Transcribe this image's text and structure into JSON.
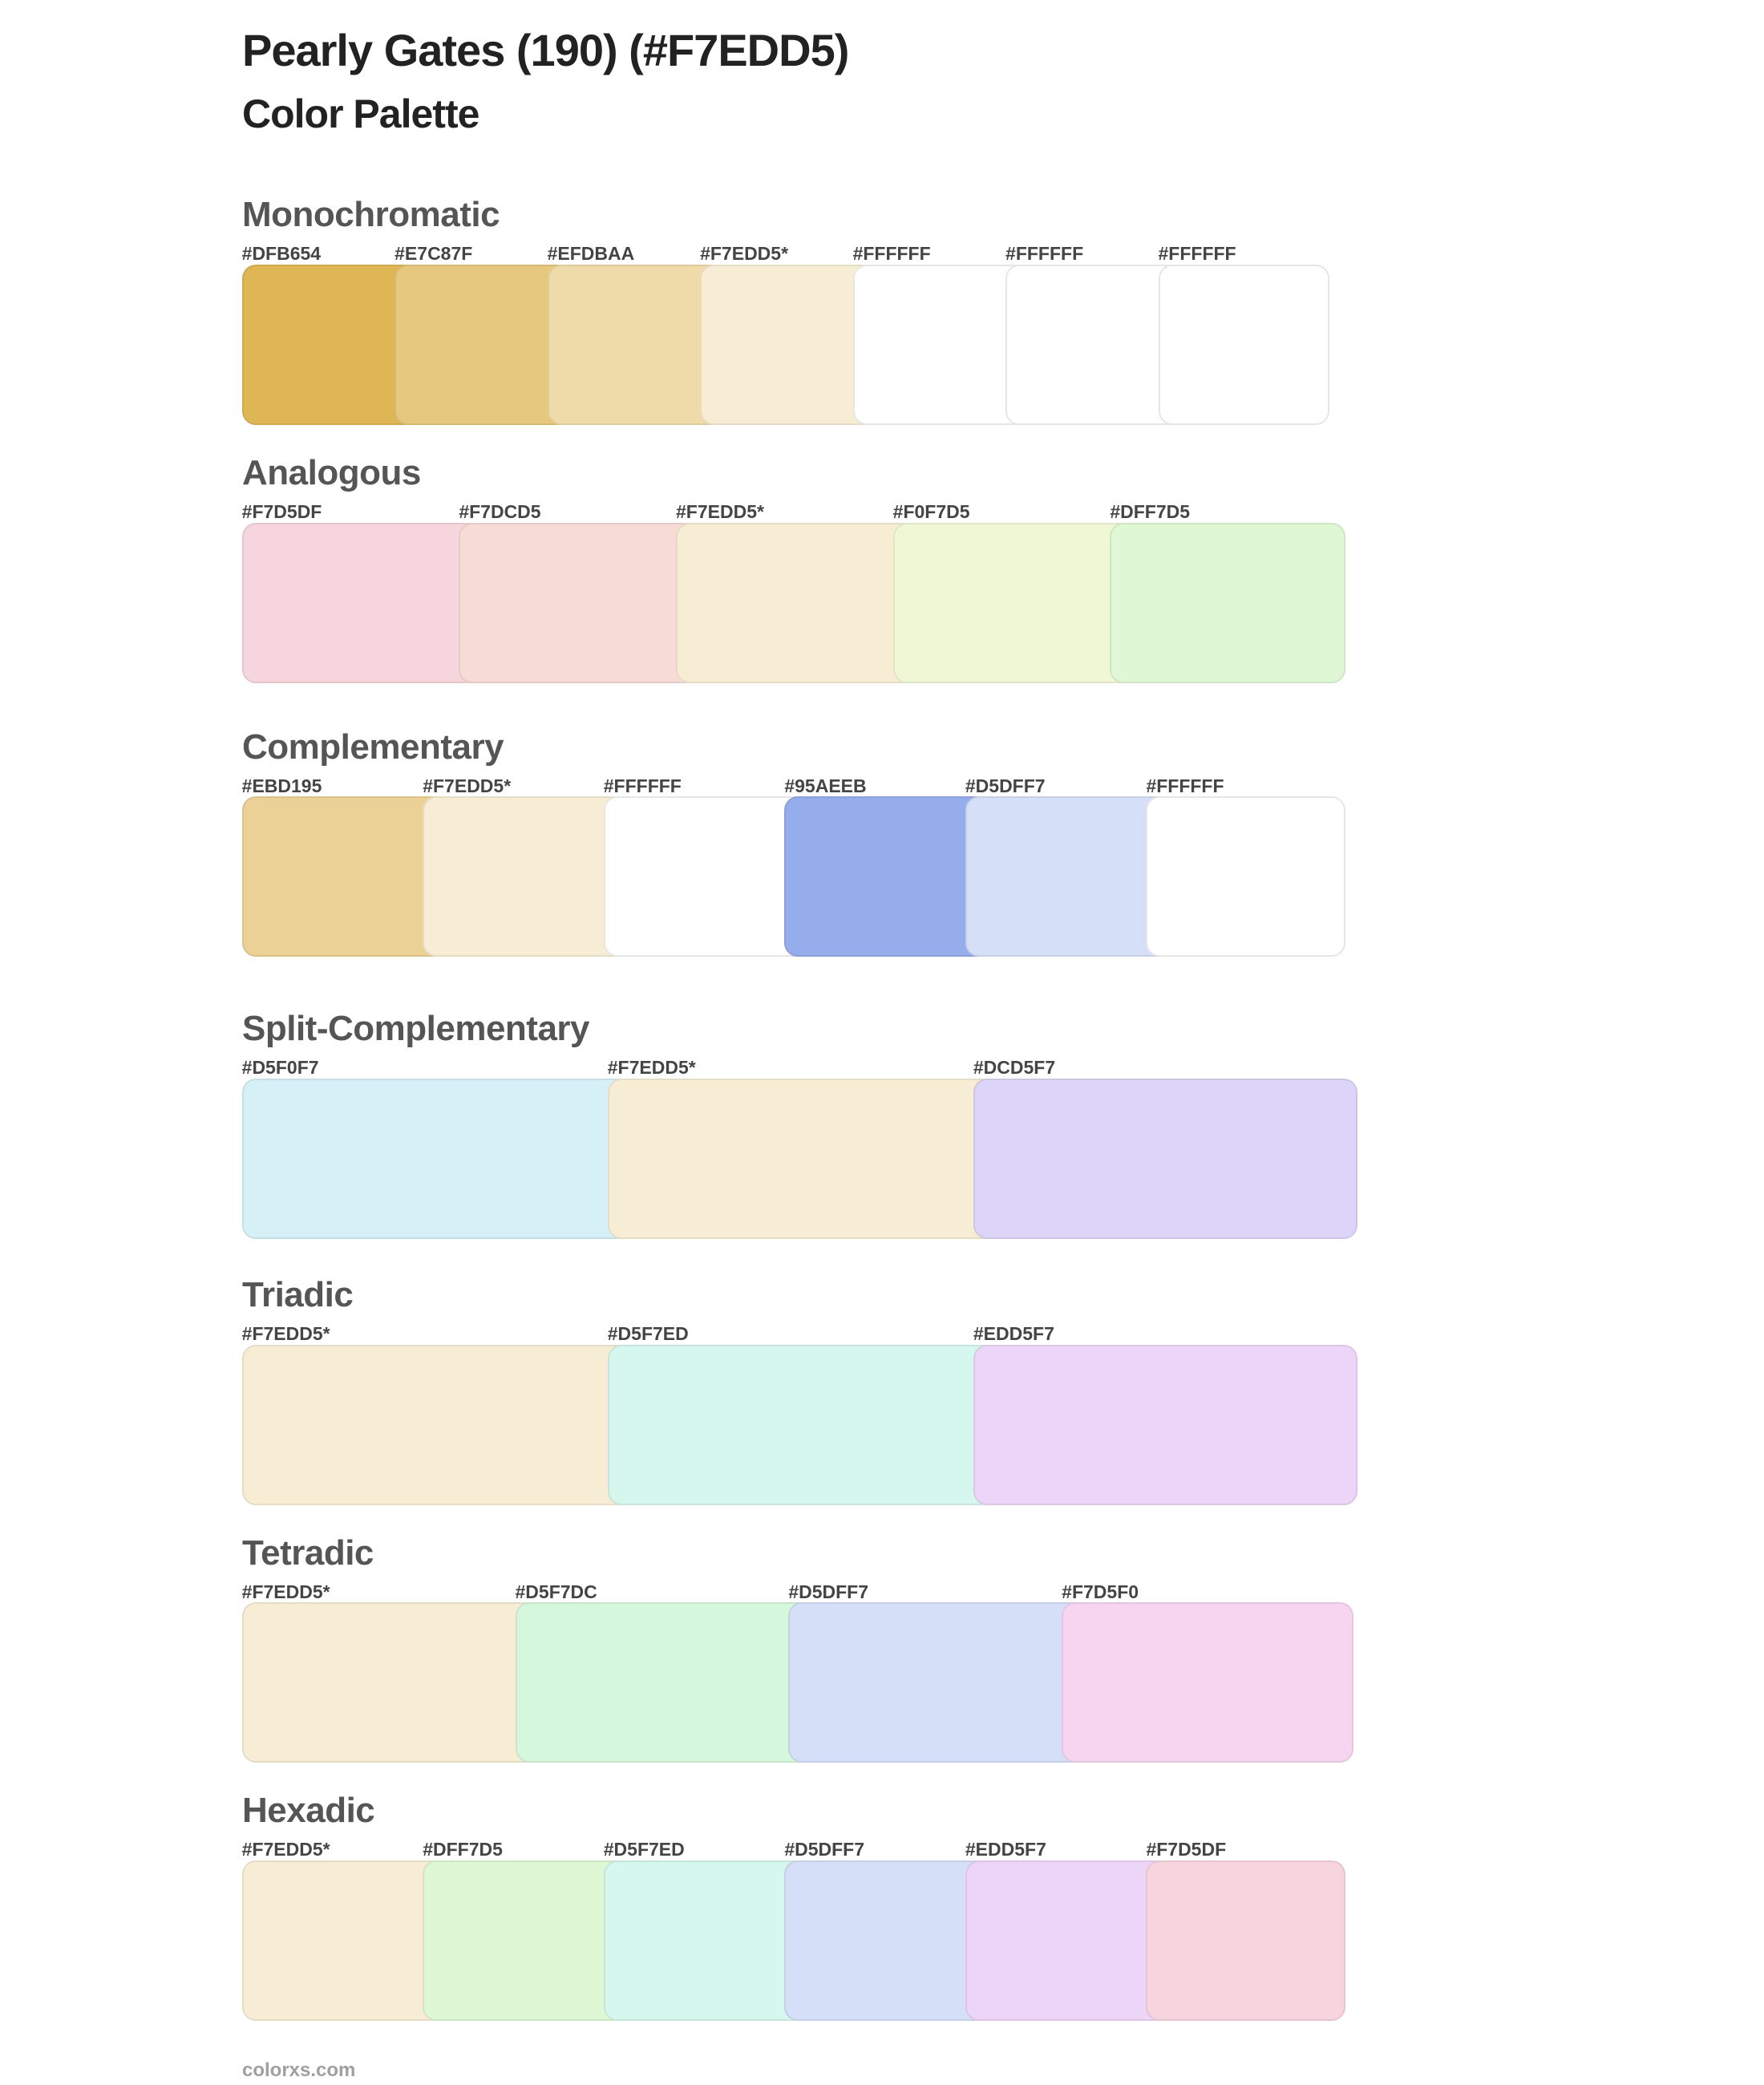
{
  "header": {
    "title": "Pearly Gates (190) (#F7EDD5)",
    "subtitle": "Color Palette"
  },
  "sections": [
    {
      "title": "Monochromatic",
      "swatches": [
        {
          "label": "#DFB654",
          "color": "#DFB654"
        },
        {
          "label": "#E7C87F",
          "color": "#E7C87F"
        },
        {
          "label": "#EFDBAA",
          "color": "#EFDBAA"
        },
        {
          "label": "#F7EDD5*",
          "color": "#F7EDD5"
        },
        {
          "label": "#FFFFFF",
          "color": "#FFFFFF"
        },
        {
          "label": "#FFFFFF",
          "color": "#FFFFFF"
        },
        {
          "label": "#FFFFFF",
          "color": "#FFFFFF"
        }
      ]
    },
    {
      "title": "Analogous",
      "swatches": [
        {
          "label": "#F7D5DF",
          "color": "#F7D5DF"
        },
        {
          "label": "#F7DCD5",
          "color": "#F7DCD5"
        },
        {
          "label": "#F7EDD5*",
          "color": "#F7EDD5"
        },
        {
          "label": "#F0F7D5",
          "color": "#F0F7D5"
        },
        {
          "label": "#DFF7D5",
          "color": "#DFF7D5"
        }
      ]
    },
    {
      "title": "Complementary",
      "swatches": [
        {
          "label": "#EBD195",
          "color": "#EBD195"
        },
        {
          "label": "#F7EDD5*",
          "color": "#F7EDD5"
        },
        {
          "label": "#FFFFFF",
          "color": "#FFFFFF"
        },
        {
          "label": "#95AEEB",
          "color": "#95AEEB"
        },
        {
          "label": "#D5DFF7",
          "color": "#D5DFF7"
        },
        {
          "label": "#FFFFFF",
          "color": "#FFFFFF"
        }
      ]
    },
    {
      "title": "Split-Complementary",
      "swatches": [
        {
          "label": "#D5F0F7",
          "color": "#D5F0F7"
        },
        {
          "label": "#F7EDD5*",
          "color": "#F7EDD5"
        },
        {
          "label": "#DCD5F7",
          "color": "#DCD5F7"
        }
      ]
    },
    {
      "title": "Triadic",
      "swatches": [
        {
          "label": "#F7EDD5*",
          "color": "#F7EDD5"
        },
        {
          "label": "#D5F7ED",
          "color": "#D5F7ED"
        },
        {
          "label": "#EDD5F7",
          "color": "#EDD5F7"
        }
      ]
    },
    {
      "title": "Tetradic",
      "swatches": [
        {
          "label": "#F7EDD5*",
          "color": "#F7EDD5"
        },
        {
          "label": "#D5F7DC",
          "color": "#D5F7DC"
        },
        {
          "label": "#D5DFF7",
          "color": "#D5DFF7"
        },
        {
          "label": "#F7D5F0",
          "color": "#F7D5F0"
        }
      ]
    },
    {
      "title": "Hexadic",
      "swatches": [
        {
          "label": "#F7EDD5*",
          "color": "#F7EDD5"
        },
        {
          "label": "#DFF7D5",
          "color": "#DFF7D5"
        },
        {
          "label": "#D5F7ED",
          "color": "#D5F7ED"
        },
        {
          "label": "#D5DFF7",
          "color": "#D5DFF7"
        },
        {
          "label": "#EDD5F7",
          "color": "#EDD5F7"
        },
        {
          "label": "#F7D5DF",
          "color": "#F7D5DF"
        }
      ]
    }
  ],
  "footer": {
    "text": "colorxs.com"
  }
}
